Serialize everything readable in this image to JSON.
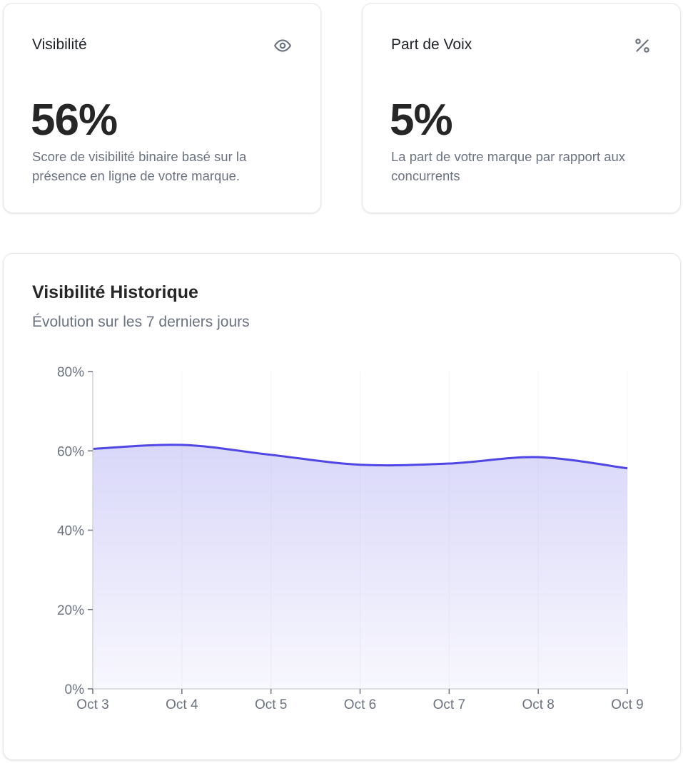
{
  "cards": {
    "visibility": {
      "title": "Visibilité",
      "icon": "eye-icon",
      "value": "56%",
      "description": "Score de visibilité binaire basé sur la présence en ligne de votre marque."
    },
    "share_of_voice": {
      "title": "Part de Voix",
      "icon": "percent-icon",
      "icon_glyph": "%",
      "value": "5%",
      "description": "La part de votre marque par rapport aux concurrents"
    }
  },
  "history": {
    "title": "Visibilité Historique",
    "subtitle": "Évolution sur les 7 derniers jours"
  },
  "colors": {
    "line": "#4f46e5",
    "fill": "#a5a1f0",
    "axis": "#d1d5db",
    "text_muted": "#6b7280"
  },
  "chart_data": {
    "type": "area",
    "categories": [
      "Oct 3",
      "Oct 4",
      "Oct 5",
      "Oct 6",
      "Oct 7",
      "Oct 8",
      "Oct 9"
    ],
    "values": [
      60.5,
      61.5,
      59,
      56.5,
      56.8,
      58.4,
      55.6
    ],
    "ylim": [
      0,
      80
    ],
    "yticks": [
      0,
      20,
      40,
      60,
      80
    ],
    "ytick_labels": [
      "0%",
      "20%",
      "40%",
      "60%",
      "80%"
    ],
    "xlabel": "",
    "ylabel": "",
    "grid": false,
    "legend": "none"
  }
}
